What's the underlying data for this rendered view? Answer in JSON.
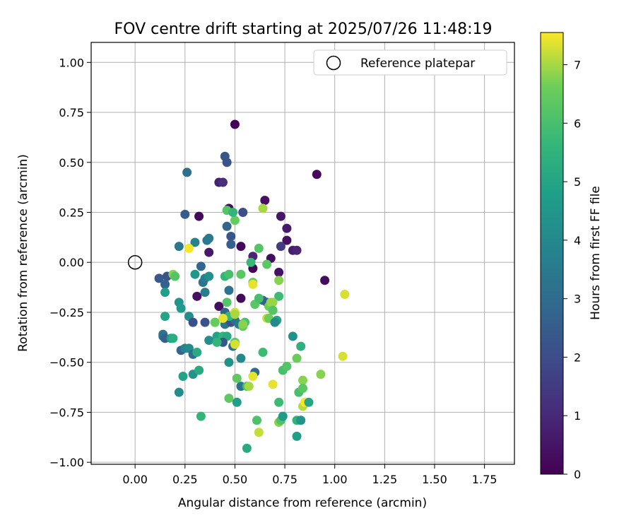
{
  "chart_data": {
    "type": "scatter",
    "title": "FOV centre drift starting at 2025/07/26 11:48:19",
    "xlabel": "Angular distance from reference (arcmin)",
    "ylabel": "Rotation from reference (arcmin)",
    "xlim": [
      -0.22,
      1.9
    ],
    "ylim": [
      -1.01,
      1.1
    ],
    "xticks": [
      "0.00",
      "0.25",
      "0.50",
      "0.75",
      "1.00",
      "1.25",
      "1.50",
      "1.75"
    ],
    "yticks": [
      "−1.00",
      "−0.75",
      "−0.50",
      "−0.25",
      "0.00",
      "0.25",
      "0.50",
      "0.75",
      "1.00"
    ],
    "grid": true,
    "legend": {
      "position": "top-right",
      "label": "Reference platepar"
    },
    "reference_point": {
      "x": 0.0,
      "y": 0.0
    },
    "colorbar": {
      "label": "Hours from first FF file",
      "range": [
        0,
        7.55
      ],
      "ticks": [
        "0",
        "1",
        "2",
        "3",
        "4",
        "5",
        "6",
        "7"
      ],
      "colormap": "viridis"
    },
    "points": [
      {
        "x": 0.5,
        "y": 0.69,
        "h": 0.1
      },
      {
        "x": 0.91,
        "y": 0.44,
        "h": 0.2
      },
      {
        "x": 0.65,
        "y": 0.31,
        "h": 0.4
      },
      {
        "x": 0.73,
        "y": 0.23,
        "h": 0.5
      },
      {
        "x": 0.76,
        "y": 0.17,
        "h": 0.6
      },
      {
        "x": 0.76,
        "y": 0.11,
        "h": 0.4
      },
      {
        "x": 0.79,
        "y": 0.06,
        "h": 0.7
      },
      {
        "x": 0.81,
        "y": 0.06,
        "h": 0.9
      },
      {
        "x": 0.95,
        "y": -0.09,
        "h": 0.3
      },
      {
        "x": 0.42,
        "y": 0.4,
        "h": 0.8
      },
      {
        "x": 0.44,
        "y": 0.4,
        "h": 1.2
      },
      {
        "x": 0.47,
        "y": 0.27,
        "h": 0.3
      },
      {
        "x": 0.32,
        "y": 0.23,
        "h": 0.2
      },
      {
        "x": 0.37,
        "y": 0.05,
        "h": 0.6
      },
      {
        "x": 0.53,
        "y": 0.08,
        "h": 0.2
      },
      {
        "x": 0.59,
        "y": 0.03,
        "h": 0.9
      },
      {
        "x": 0.59,
        "y": -0.03,
        "h": 0.1
      },
      {
        "x": 0.68,
        "y": 0.02,
        "h": 0.3
      },
      {
        "x": 0.72,
        "y": -0.05,
        "h": 0.4
      },
      {
        "x": 0.73,
        "y": 0.08,
        "h": 1.5
      },
      {
        "x": 0.42,
        "y": -0.22,
        "h": 0.3
      },
      {
        "x": 0.53,
        "y": -0.18,
        "h": 0.2
      },
      {
        "x": 0.31,
        "y": -0.17,
        "h": 0.4
      },
      {
        "x": 0.45,
        "y": 0.53,
        "h": 2.3
      },
      {
        "x": 0.46,
        "y": 0.5,
        "h": 2.2
      },
      {
        "x": 0.26,
        "y": 0.45,
        "h": 3.1
      },
      {
        "x": 0.25,
        "y": 0.24,
        "h": 2.5
      },
      {
        "x": 0.54,
        "y": 0.25,
        "h": 2.0
      },
      {
        "x": 0.46,
        "y": 0.18,
        "h": 2.8
      },
      {
        "x": 0.48,
        "y": 0.13,
        "h": 2.3
      },
      {
        "x": 0.48,
        "y": 0.09,
        "h": 2.6
      },
      {
        "x": 0.36,
        "y": 0.11,
        "h": 3.5
      },
      {
        "x": 0.37,
        "y": 0.12,
        "h": 3.5
      },
      {
        "x": 0.3,
        "y": 0.1,
        "h": 3.8
      },
      {
        "x": 0.22,
        "y": 0.08,
        "h": 3.4
      },
      {
        "x": 0.12,
        "y": -0.08,
        "h": 2.4
      },
      {
        "x": 0.16,
        "y": -0.07,
        "h": 2.2
      },
      {
        "x": 0.15,
        "y": -0.11,
        "h": 2.7
      },
      {
        "x": 0.33,
        "y": -0.02,
        "h": 2.8
      },
      {
        "x": 0.34,
        "y": -0.1,
        "h": 3.3
      },
      {
        "x": 0.35,
        "y": -0.08,
        "h": 3.6
      },
      {
        "x": 0.37,
        "y": -0.07,
        "h": 4.3
      },
      {
        "x": 0.3,
        "y": -0.06,
        "h": 4.5
      },
      {
        "x": 0.15,
        "y": -0.15,
        "h": 4.8
      },
      {
        "x": 0.22,
        "y": -0.2,
        "h": 4.4
      },
      {
        "x": 0.23,
        "y": -0.23,
        "h": 4.6
      },
      {
        "x": 0.15,
        "y": -0.27,
        "h": 5.0
      },
      {
        "x": 0.27,
        "y": -0.27,
        "h": 4.2
      },
      {
        "x": 0.29,
        "y": -0.3,
        "h": 2.1
      },
      {
        "x": 0.35,
        "y": -0.3,
        "h": 2.2
      },
      {
        "x": 0.35,
        "y": -0.15,
        "h": 3.6
      },
      {
        "x": 0.47,
        "y": -0.14,
        "h": 3.3
      },
      {
        "x": 0.45,
        "y": -0.25,
        "h": 2.7
      },
      {
        "x": 0.45,
        "y": -0.31,
        "h": 3.3
      },
      {
        "x": 0.48,
        "y": -0.3,
        "h": 2.1
      },
      {
        "x": 0.5,
        "y": -0.29,
        "h": 3.2
      },
      {
        "x": 0.52,
        "y": -0.31,
        "h": 3.5
      },
      {
        "x": 0.47,
        "y": -0.27,
        "h": 5.6
      },
      {
        "x": 0.55,
        "y": -0.3,
        "h": 6.0
      },
      {
        "x": 0.64,
        "y": -0.19,
        "h": 3.0
      },
      {
        "x": 0.66,
        "y": -0.2,
        "h": 2.6
      },
      {
        "x": 0.14,
        "y": -0.36,
        "h": 3.3
      },
      {
        "x": 0.14,
        "y": -0.37,
        "h": 3.2
      },
      {
        "x": 0.15,
        "y": -0.38,
        "h": 2.6
      },
      {
        "x": 0.18,
        "y": -0.38,
        "h": 4.7
      },
      {
        "x": 0.19,
        "y": -0.38,
        "h": 5.3
      },
      {
        "x": 0.23,
        "y": -0.44,
        "h": 2.8
      },
      {
        "x": 0.25,
        "y": -0.43,
        "h": 3.8
      },
      {
        "x": 0.27,
        "y": -0.43,
        "h": 4.1
      },
      {
        "x": 0.29,
        "y": -0.46,
        "h": 3.1
      },
      {
        "x": 0.31,
        "y": -0.45,
        "h": 5.2
      },
      {
        "x": 0.37,
        "y": -0.39,
        "h": 4.2
      },
      {
        "x": 0.41,
        "y": -0.37,
        "h": 4.9
      },
      {
        "x": 0.44,
        "y": -0.37,
        "h": 5.5
      },
      {
        "x": 0.46,
        "y": -0.37,
        "h": 5.2
      },
      {
        "x": 0.44,
        "y": -0.4,
        "h": 2.3
      },
      {
        "x": 0.49,
        "y": -0.42,
        "h": 3.1
      },
      {
        "x": 0.5,
        "y": -0.4,
        "h": 6.4
      },
      {
        "x": 0.4,
        "y": -0.3,
        "h": 6.3
      },
      {
        "x": 0.41,
        "y": -0.4,
        "h": 5.6
      },
      {
        "x": 0.5,
        "y": -0.41,
        "h": 7.3
      },
      {
        "x": 0.47,
        "y": -0.5,
        "h": 4.3
      },
      {
        "x": 0.53,
        "y": -0.48,
        "h": 4.0
      },
      {
        "x": 0.29,
        "y": -0.56,
        "h": 4.4
      },
      {
        "x": 0.24,
        "y": -0.57,
        "h": 4.9
      },
      {
        "x": 0.32,
        "y": -0.54,
        "h": 5.2
      },
      {
        "x": 0.22,
        "y": -0.65,
        "h": 4.2
      },
      {
        "x": 0.53,
        "y": -0.62,
        "h": 3.3
      },
      {
        "x": 0.6,
        "y": -0.55,
        "h": 3.0
      },
      {
        "x": 0.59,
        "y": -0.57,
        "h": 7.4
      },
      {
        "x": 0.51,
        "y": -0.58,
        "h": 6.4
      },
      {
        "x": 0.56,
        "y": -0.62,
        "h": 6.0
      },
      {
        "x": 0.57,
        "y": -0.62,
        "h": 7.0
      },
      {
        "x": 0.47,
        "y": -0.68,
        "h": 6.4
      },
      {
        "x": 0.51,
        "y": -0.7,
        "h": 4.8
      },
      {
        "x": 0.33,
        "y": -0.77,
        "h": 5.6
      },
      {
        "x": 0.56,
        "y": -0.93,
        "h": 5.2
      },
      {
        "x": 0.61,
        "y": -0.79,
        "h": 6.1
      },
      {
        "x": 0.62,
        "y": -0.85,
        "h": 7.2
      },
      {
        "x": 0.69,
        "y": -0.61,
        "h": 7.4
      },
      {
        "x": 0.72,
        "y": -0.7,
        "h": 5.8
      },
      {
        "x": 0.72,
        "y": -0.8,
        "h": 6.8
      },
      {
        "x": 0.73,
        "y": -0.79,
        "h": 6.1
      },
      {
        "x": 0.74,
        "y": -0.77,
        "h": 4.7
      },
      {
        "x": 0.74,
        "y": -0.54,
        "h": 6.0
      },
      {
        "x": 0.76,
        "y": -0.52,
        "h": 6.2
      },
      {
        "x": 0.79,
        "y": -0.37,
        "h": 4.3
      },
      {
        "x": 0.81,
        "y": -0.48,
        "h": 6.6
      },
      {
        "x": 0.82,
        "y": -0.65,
        "h": 6.0
      },
      {
        "x": 0.83,
        "y": -0.42,
        "h": 5.4
      },
      {
        "x": 0.84,
        "y": -0.59,
        "h": 6.8
      },
      {
        "x": 0.84,
        "y": -0.63,
        "h": 6.3
      },
      {
        "x": 0.84,
        "y": -0.72,
        "h": 7.1
      },
      {
        "x": 0.85,
        "y": -0.7,
        "h": 7.5
      },
      {
        "x": 0.87,
        "y": -0.7,
        "h": 5.0
      },
      {
        "x": 0.81,
        "y": -0.79,
        "h": 5.5
      },
      {
        "x": 0.83,
        "y": -0.79,
        "h": 4.4
      },
      {
        "x": 0.81,
        "y": -0.87,
        "h": 4.8
      },
      {
        "x": 0.93,
        "y": -0.56,
        "h": 6.8
      },
      {
        "x": 1.04,
        "y": -0.47,
        "h": 7.3
      },
      {
        "x": 1.05,
        "y": -0.16,
        "h": 7.3
      },
      {
        "x": 0.64,
        "y": -0.45,
        "h": 5.8
      },
      {
        "x": 0.64,
        "y": 0.27,
        "h": 7.0
      },
      {
        "x": 0.46,
        "y": 0.26,
        "h": 6.2
      },
      {
        "x": 0.5,
        "y": 0.21,
        "h": 6.5
      },
      {
        "x": 0.49,
        "y": 0.25,
        "h": 5.6
      },
      {
        "x": 0.27,
        "y": 0.07,
        "h": 7.5
      },
      {
        "x": 0.19,
        "y": -0.06,
        "h": 6.8
      },
      {
        "x": 0.2,
        "y": -0.07,
        "h": 6.2
      },
      {
        "x": 0.53,
        "y": -0.06,
        "h": 6.3
      },
      {
        "x": 0.45,
        "y": -0.07,
        "h": 5.6
      },
      {
        "x": 0.47,
        "y": -0.06,
        "h": 6.0
      },
      {
        "x": 0.58,
        "y": 0.0,
        "h": 5.7
      },
      {
        "x": 0.62,
        "y": 0.07,
        "h": 6.2
      },
      {
        "x": 0.66,
        "y": -0.01,
        "h": 6.3
      },
      {
        "x": 0.59,
        "y": -0.1,
        "h": 6.6
      },
      {
        "x": 0.59,
        "y": -0.11,
        "h": 7.4
      },
      {
        "x": 0.72,
        "y": -0.09,
        "h": 6.8
      },
      {
        "x": 0.72,
        "y": -0.17,
        "h": 5.8
      },
      {
        "x": 0.6,
        "y": -0.21,
        "h": 6.3
      },
      {
        "x": 0.62,
        "y": -0.18,
        "h": 6.0
      },
      {
        "x": 0.46,
        "y": -0.2,
        "h": 6.2
      },
      {
        "x": 0.5,
        "y": -0.25,
        "h": 7.3
      },
      {
        "x": 0.44,
        "y": -0.28,
        "h": 7.4
      },
      {
        "x": 0.4,
        "y": -0.3,
        "h": 6.5
      },
      {
        "x": 0.54,
        "y": -0.32,
        "h": 6.4
      },
      {
        "x": 0.54,
        "y": -0.31,
        "h": 6.8
      },
      {
        "x": 0.67,
        "y": -0.22,
        "h": 6.6
      },
      {
        "x": 0.68,
        "y": -0.2,
        "h": 6.9
      },
      {
        "x": 0.69,
        "y": -0.2,
        "h": 6.9
      },
      {
        "x": 0.69,
        "y": -0.24,
        "h": 6.2
      },
      {
        "x": 0.66,
        "y": -0.28,
        "h": 7.2
      },
      {
        "x": 0.67,
        "y": -0.28,
        "h": 6.6
      },
      {
        "x": 0.71,
        "y": -0.29,
        "h": 5.0
      },
      {
        "x": 0.7,
        "y": -0.3,
        "h": 4.1
      },
      {
        "x": 0.5,
        "y": -0.26,
        "h": 7.0
      }
    ]
  }
}
